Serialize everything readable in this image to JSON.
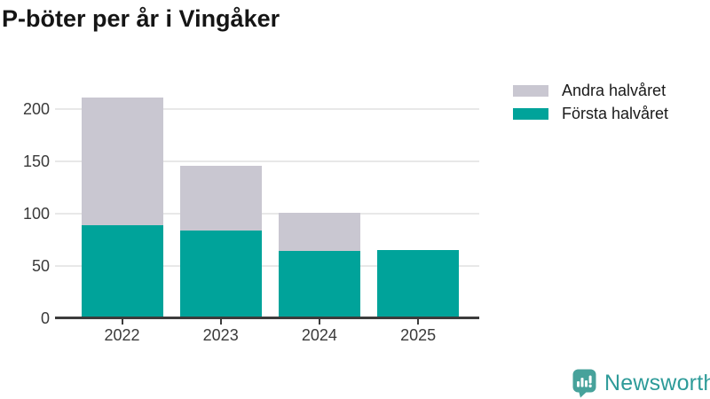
{
  "title": "P-böter per år i Vingåker",
  "chart_data": {
    "type": "bar",
    "stacked": true,
    "title": "P-böter per år i Vingåker",
    "categories": [
      "2022",
      "2023",
      "2024",
      "2025"
    ],
    "series": [
      {
        "name": "Första halvåret",
        "color": "#00A39A",
        "values": [
          89,
          84,
          64,
          65
        ]
      },
      {
        "name": "Andra halvåret",
        "color": "#C9C7D1",
        "values": [
          122,
          62,
          37,
          0
        ]
      }
    ],
    "totals": [
      211,
      146,
      101,
      65
    ],
    "yticks": [
      0,
      50,
      100,
      150,
      200
    ],
    "ylim": [
      0,
      228
    ],
    "xlabel": "",
    "ylabel": "",
    "grid": true,
    "legend_position": "top-right"
  },
  "legend": {
    "items": [
      {
        "label": "Andra halvåret",
        "color": "#C9C7D1"
      },
      {
        "label": "Första halvåret",
        "color": "#00A39A"
      }
    ]
  },
  "branding": {
    "logo_text": "Newsworthy",
    "logo_text_color": "#2E9B99",
    "logo_bubble_color": "#47A29B"
  },
  "colors": {
    "axis": "#3C3C3C",
    "gridline": "#E8E8E8",
    "tick_label": "#3A3A3A",
    "title": "#151515",
    "background": "#FFFFFF"
  }
}
